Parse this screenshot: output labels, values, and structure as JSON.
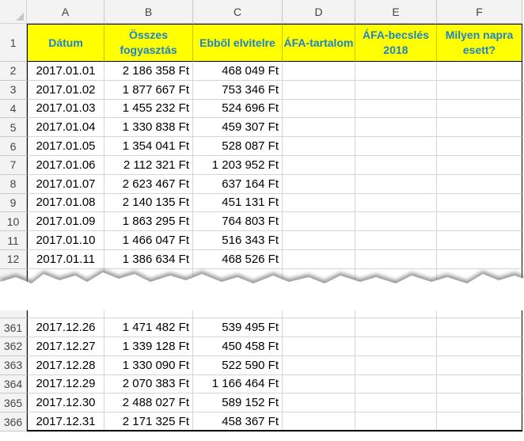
{
  "columns": [
    "A",
    "B",
    "C",
    "D",
    "E",
    "F"
  ],
  "header": {
    "row_number": "1",
    "cells": [
      "Dátum",
      "Összes fogyasztás",
      "Ebből elvitelre",
      "ÁFA-tartalom",
      "ÁFA-becslés 2018",
      "Milyen napra esett?"
    ]
  },
  "rows_top": [
    {
      "n": "2",
      "date": "2017.01.01",
      "total": "2 186 358 Ft",
      "takeaway": "468 049 Ft"
    },
    {
      "n": "3",
      "date": "2017.01.02",
      "total": "1 877 667 Ft",
      "takeaway": "753 346 Ft"
    },
    {
      "n": "4",
      "date": "2017.01.03",
      "total": "1 455 232 Ft",
      "takeaway": "524 696 Ft"
    },
    {
      "n": "5",
      "date": "2017.01.04",
      "total": "1 330 838 Ft",
      "takeaway": "459 307 Ft"
    },
    {
      "n": "6",
      "date": "2017.01.05",
      "total": "1 354 041 Ft",
      "takeaway": "528 087 Ft"
    },
    {
      "n": "7",
      "date": "2017.01.06",
      "total": "2 112 321 Ft",
      "takeaway": "1 203 952 Ft"
    },
    {
      "n": "8",
      "date": "2017.01.07",
      "total": "2 623 467 Ft",
      "takeaway": "637 164 Ft"
    },
    {
      "n": "9",
      "date": "2017.01.08",
      "total": "2 140 135 Ft",
      "takeaway": "451 131 Ft"
    },
    {
      "n": "10",
      "date": "2017.01.09",
      "total": "1 863 295 Ft",
      "takeaway": "764 803 Ft"
    },
    {
      "n": "11",
      "date": "2017.01.10",
      "total": "1 466 047 Ft",
      "takeaway": "516 343 Ft"
    },
    {
      "n": "12",
      "date": "2017.01.11",
      "total": "1 386 634 Ft",
      "takeaway": "468 526 Ft"
    }
  ],
  "rows_bottom": [
    {
      "n": "361",
      "date": "2017.12.26",
      "total": "1 471 482 Ft",
      "takeaway": "539 495 Ft"
    },
    {
      "n": "362",
      "date": "2017.12.27",
      "total": "1 339 128 Ft",
      "takeaway": "450 458 Ft"
    },
    {
      "n": "363",
      "date": "2017.12.28",
      "total": "1 330 090 Ft",
      "takeaway": "522 590 Ft"
    },
    {
      "n": "364",
      "date": "2017.12.29",
      "total": "2 070 383 Ft",
      "takeaway": "1 166 464 Ft"
    },
    {
      "n": "365",
      "date": "2017.12.30",
      "total": "2 488 027 Ft",
      "takeaway": "589 152 Ft"
    },
    {
      "n": "366",
      "date": "2017.12.31",
      "total": "2 171 325 Ft",
      "takeaway": "458 367 Ft"
    }
  ]
}
